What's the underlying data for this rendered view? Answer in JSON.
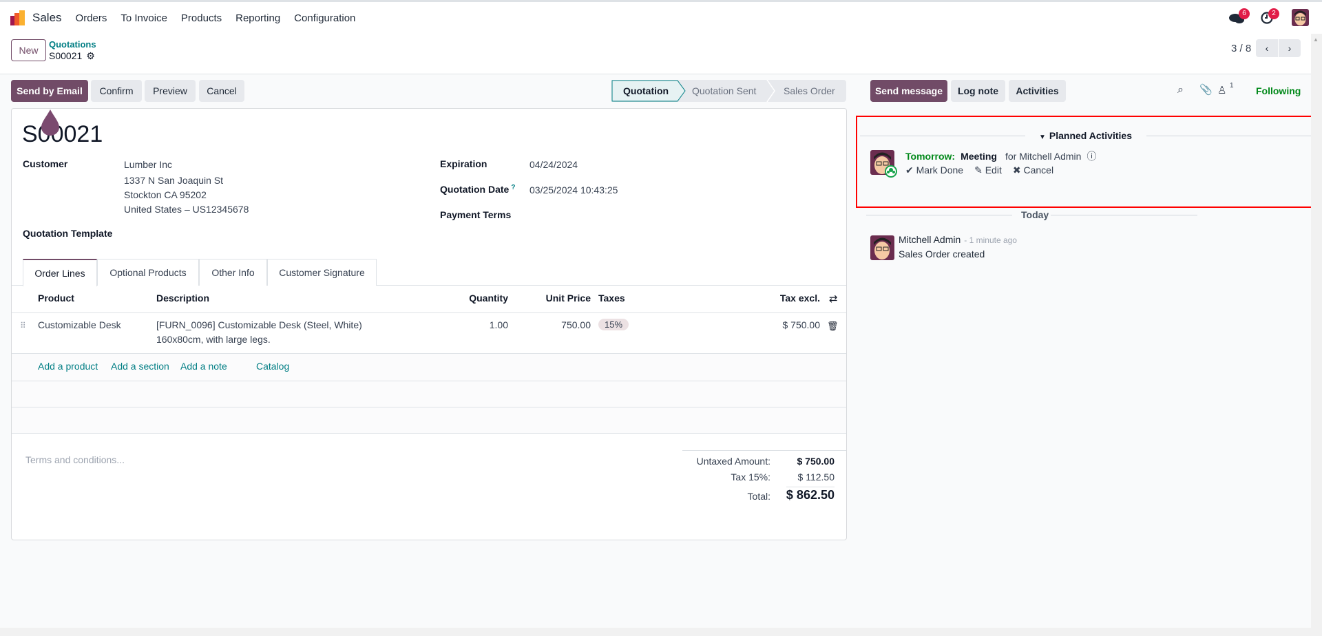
{
  "navbar": {
    "app": "Sales",
    "menu": [
      "Orders",
      "To Invoice",
      "Products",
      "Reporting",
      "Configuration"
    ],
    "messages_count": "6",
    "activities_count": "2"
  },
  "control_panel": {
    "new_label": "New",
    "breadcrumb_parent": "Quotations",
    "breadcrumb_current": "S00021",
    "pager": "3 / 8"
  },
  "actions": {
    "send_email": "Send by Email",
    "confirm": "Confirm",
    "preview": "Preview",
    "cancel": "Cancel"
  },
  "statusbar": {
    "stages": [
      "Quotation",
      "Quotation Sent",
      "Sales Order"
    ],
    "active": "Quotation"
  },
  "form": {
    "name": "S00021",
    "customer_label": "Customer",
    "customer_name": "Lumber Inc",
    "address": [
      "1337 N San Joaquin St",
      "Stockton CA 95202",
      "United States – US12345678"
    ],
    "template_label": "Quotation Template",
    "expiration_label": "Expiration",
    "expiration": "04/24/2024",
    "date_label": "Quotation Date",
    "date_help": "?",
    "date": "03/25/2024 10:43:25",
    "payment_terms_label": "Payment Terms",
    "tabs": [
      "Order Lines",
      "Optional Products",
      "Other Info",
      "Customer Signature"
    ],
    "columns": {
      "product": "Product",
      "description": "Description",
      "quantity": "Quantity",
      "unit_price": "Unit Price",
      "taxes": "Taxes",
      "subtotal": "Tax excl."
    },
    "lines": [
      {
        "product": "Customizable Desk",
        "description": "[FURN_0096] Customizable Desk (Steel, White)",
        "description2": "160x80cm, with large legs.",
        "quantity": "1.00",
        "unit_price": "750.00",
        "tax": "15%",
        "subtotal": "$ 750.00"
      }
    ],
    "add_links": [
      "Add a product",
      "Add a section",
      "Add a note",
      "Catalog"
    ],
    "terms_placeholder": "Terms and conditions...",
    "totals": {
      "untaxed_label": "Untaxed Amount:",
      "untaxed": "$ 750.00",
      "tax_label": "Tax 15%:",
      "tax": "$ 112.50",
      "total_label": "Total:",
      "total": "$ 862.50"
    }
  },
  "chatter": {
    "send_message": "Send message",
    "log_note": "Log note",
    "activities": "Activities",
    "followers_count": "1",
    "following": "Following",
    "planned_title": "Planned Activities",
    "activity": {
      "when": "Tomorrow:",
      "type": "Meeting",
      "for": "for Mitchell Admin",
      "mark_done": "Mark Done",
      "edit": "Edit",
      "cancel": "Cancel"
    },
    "date_separator": "Today",
    "message": {
      "author": "Mitchell Admin",
      "time": "- 1 minute ago",
      "body": "Sales Order created"
    }
  },
  "colors": {
    "brand": "#714b67",
    "link": "#017e84",
    "success": "#008818",
    "highlight_box": "#ff0000"
  }
}
